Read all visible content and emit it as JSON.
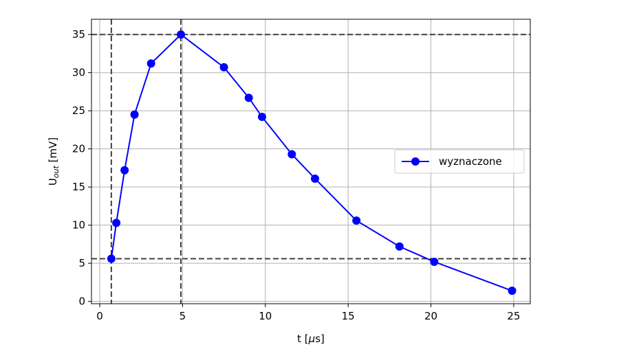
{
  "chart_data": {
    "type": "line",
    "title": "",
    "xlabel_main": "t [",
    "xlabel_mu": "μ",
    "xlabel_tail": "s]",
    "ylabel_main": "U",
    "ylabel_sub": "out",
    "ylabel_tail": " [mV]",
    "xlim": [
      -0.5,
      26
    ],
    "ylim": [
      -0.3,
      37
    ],
    "xticks": [
      0,
      5,
      10,
      15,
      20,
      25
    ],
    "yticks": [
      0,
      5,
      10,
      15,
      20,
      25,
      30,
      35
    ],
    "grid": true,
    "legend_position": "center-right",
    "series": [
      {
        "name": "wyznaczone",
        "color": "#0000ff",
        "marker": "circle",
        "x": [
          0.7,
          1.0,
          1.5,
          2.1,
          3.1,
          4.9,
          7.5,
          9.0,
          9.8,
          11.6,
          13.0,
          15.5,
          18.1,
          20.2,
          24.9
        ],
        "y": [
          5.6,
          10.3,
          17.2,
          24.5,
          31.2,
          35.0,
          30.7,
          26.7,
          24.2,
          19.3,
          16.1,
          10.6,
          7.2,
          5.2,
          1.4
        ]
      }
    ],
    "reference_lines": {
      "horizontal": [
        35.0,
        5.6
      ],
      "vertical": [
        0.7,
        4.9
      ],
      "color": "#404040",
      "style": "dashed"
    }
  }
}
